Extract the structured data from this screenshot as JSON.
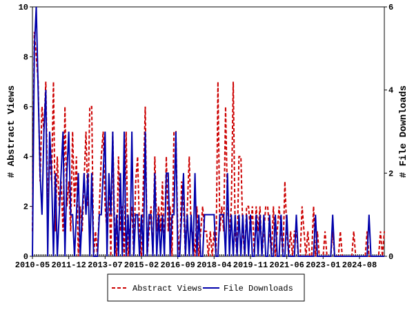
{
  "chart_data": {
    "type": "line",
    "x": [
      "2010-05",
      "2010-06",
      "2010-07",
      "2010-08",
      "2010-09",
      "2010-10",
      "2010-11",
      "2010-12",
      "2011-01",
      "2011-02",
      "2011-03",
      "2011-04",
      "2011-05",
      "2011-06",
      "2011-07",
      "2011-08",
      "2011-09",
      "2011-10",
      "2011-11",
      "2011-12",
      "2012-01",
      "2012-02",
      "2012-03",
      "2012-04",
      "2012-05",
      "2012-06",
      "2012-07",
      "2012-08",
      "2012-09",
      "2012-10",
      "2012-11",
      "2012-12",
      "2013-01",
      "2013-02",
      "2013-03",
      "2013-04",
      "2013-05",
      "2013-06",
      "2013-07",
      "2013-08",
      "2013-09",
      "2013-10",
      "2013-11",
      "2013-12",
      "2014-01",
      "2014-02",
      "2014-03",
      "2014-04",
      "2014-05",
      "2014-06",
      "2014-07",
      "2014-08",
      "2014-09",
      "2014-10",
      "2014-11",
      "2014-12",
      "2015-01",
      "2015-02",
      "2015-03",
      "2015-04",
      "2015-05",
      "2015-06",
      "2015-07",
      "2015-08",
      "2015-09",
      "2015-10",
      "2015-11",
      "2015-12",
      "2016-01",
      "2016-02",
      "2016-03",
      "2016-04",
      "2016-05",
      "2016-06",
      "2016-07",
      "2016-08",
      "2016-09",
      "2016-10",
      "2016-11",
      "2016-12",
      "2017-01",
      "2017-02",
      "2017-03",
      "2017-04",
      "2017-05",
      "2017-06",
      "2017-07",
      "2017-08",
      "2017-09",
      "2017-10",
      "2017-11",
      "2017-12",
      "2018-01",
      "2018-02",
      "2018-03",
      "2018-04",
      "2018-05",
      "2018-06",
      "2018-07",
      "2018-08",
      "2018-09",
      "2018-10",
      "2018-11",
      "2018-12",
      "2019-01",
      "2019-02",
      "2019-03",
      "2019-04",
      "2019-05",
      "2019-06",
      "2019-07",
      "2019-08",
      "2019-09",
      "2019-10",
      "2019-11",
      "2019-12",
      "2020-01",
      "2020-02",
      "2020-03",
      "2020-04",
      "2020-05",
      "2020-06",
      "2020-07",
      "2020-08",
      "2020-09",
      "2020-10",
      "2020-11",
      "2020-12",
      "2021-01",
      "2021-02",
      "2021-03",
      "2021-04",
      "2021-05",
      "2021-06",
      "2021-07",
      "2021-08",
      "2021-09",
      "2021-10",
      "2021-11",
      "2021-12",
      "2022-01",
      "2022-02",
      "2022-03",
      "2022-04",
      "2022-05",
      "2022-06",
      "2022-07",
      "2022-08",
      "2022-09",
      "2022-10",
      "2022-11",
      "2022-12",
      "2023-01",
      "2023-02",
      "2023-03",
      "2023-04",
      "2023-05",
      "2023-06",
      "2023-07",
      "2023-08",
      "2023-09",
      "2023-10",
      "2023-11",
      "2023-12",
      "2024-01",
      "2024-02",
      "2024-03",
      "2024-04",
      "2024-05",
      "2024-06",
      "2024-07",
      "2024-08",
      "2024-09",
      "2024-10",
      "2024-11",
      "2024-12",
      "2025-01",
      "2025-02",
      "2025-03",
      "2025-04",
      "2025-05",
      "2025-06",
      "2025-07",
      "2025-08",
      "2025-09"
    ],
    "xticks": [
      "2010-05",
      "2011-12",
      "2013-07",
      "2015-02",
      "2016-09",
      "2018-04",
      "2019-11",
      "2021-06",
      "2023-01",
      "2024-08"
    ],
    "ylabel": "# Abstract Views",
    "y2label": "# File Downloads",
    "ylim": [
      0,
      10
    ],
    "yticks": [
      0,
      2,
      4,
      6,
      8,
      10
    ],
    "y2lim": [
      0,
      6
    ],
    "y2ticks": [
      0,
      2,
      4,
      6
    ],
    "series": [
      {
        "name": "Abstract Views",
        "color": "#cc0000",
        "dash": true,
        "values": [
          1,
          9,
          8,
          7,
          3,
          6,
          5,
          7,
          2,
          4,
          3,
          7,
          1,
          4,
          2,
          3,
          1,
          6,
          2,
          3,
          1,
          5,
          2,
          4,
          0,
          2,
          1,
          3,
          5,
          2,
          6,
          6,
          0,
          1,
          0,
          2,
          4,
          5,
          2,
          1,
          3,
          0,
          5,
          1,
          0,
          4,
          1,
          2,
          0,
          5,
          0,
          1,
          2,
          0,
          3,
          4,
          1,
          0,
          3,
          6,
          0,
          1,
          2,
          0,
          4,
          1,
          2,
          1,
          3,
          0,
          4,
          1,
          2,
          0,
          5,
          5,
          1,
          0,
          3,
          2,
          0,
          2,
          4,
          1,
          1,
          0,
          2,
          0,
          1,
          2,
          1,
          1,
          0,
          1,
          0,
          1,
          0,
          7,
          1,
          2,
          1,
          6,
          2,
          1,
          2,
          7,
          1,
          0,
          4,
          4,
          1,
          0,
          2,
          2,
          1,
          2,
          0,
          2,
          1,
          2,
          0,
          1,
          2,
          2,
          1,
          0,
          2,
          0,
          1,
          2,
          1,
          0,
          3,
          1,
          0,
          1,
          0,
          1,
          1,
          0,
          0,
          2,
          1,
          0,
          1,
          0,
          0,
          2,
          0,
          1,
          0,
          0,
          0,
          1,
          0,
          0,
          0,
          1,
          0,
          0,
          0,
          1,
          0,
          0,
          0,
          0,
          0,
          0,
          1,
          0,
          0,
          0,
          0,
          0,
          0,
          1,
          0,
          0,
          0,
          0,
          0,
          0,
          1,
          0,
          1
        ]
      },
      {
        "name": "File Downloads",
        "color": "#0000aa",
        "dash": false,
        "axis": "y2",
        "values": [
          0,
          5,
          6,
          4,
          2,
          1,
          3,
          4,
          0,
          3,
          2,
          0,
          2,
          0,
          1,
          2,
          3,
          0,
          2,
          3,
          1,
          1,
          0,
          1,
          2,
          0,
          1,
          2,
          1,
          2,
          0,
          2,
          0,
          0,
          0,
          1,
          1,
          2,
          3,
          0,
          2,
          1,
          3,
          0,
          1,
          0,
          2,
          0,
          3,
          0,
          1,
          0,
          3,
          0,
          1,
          1,
          0,
          1,
          0,
          3,
          0,
          1,
          1,
          0,
          2,
          0,
          1,
          0,
          1,
          0,
          2,
          2,
          0,
          1,
          1,
          3,
          0,
          0,
          1,
          2,
          0,
          1,
          0,
          1,
          0,
          2,
          0,
          1,
          0,
          0,
          1,
          1,
          1,
          1,
          1,
          1,
          0,
          0,
          1,
          1,
          1,
          0,
          2,
          0,
          1,
          0,
          1,
          0,
          1,
          0,
          1,
          0,
          1,
          0,
          1,
          0,
          0,
          1,
          0,
          1,
          0,
          1,
          0,
          0,
          1,
          0,
          0,
          1,
          0,
          0,
          1,
          0,
          0,
          1,
          0,
          0,
          0,
          0,
          1,
          0,
          0,
          0,
          0,
          0,
          0,
          0,
          0,
          0,
          1,
          0,
          0,
          0,
          0,
          0,
          0,
          0,
          0,
          1,
          0,
          0,
          0,
          0,
          0,
          0,
          0,
          0,
          0,
          0,
          0,
          0,
          0,
          0,
          0,
          0,
          0,
          0,
          1,
          0,
          0,
          0,
          0,
          0,
          0,
          0,
          0
        ]
      }
    ]
  }
}
